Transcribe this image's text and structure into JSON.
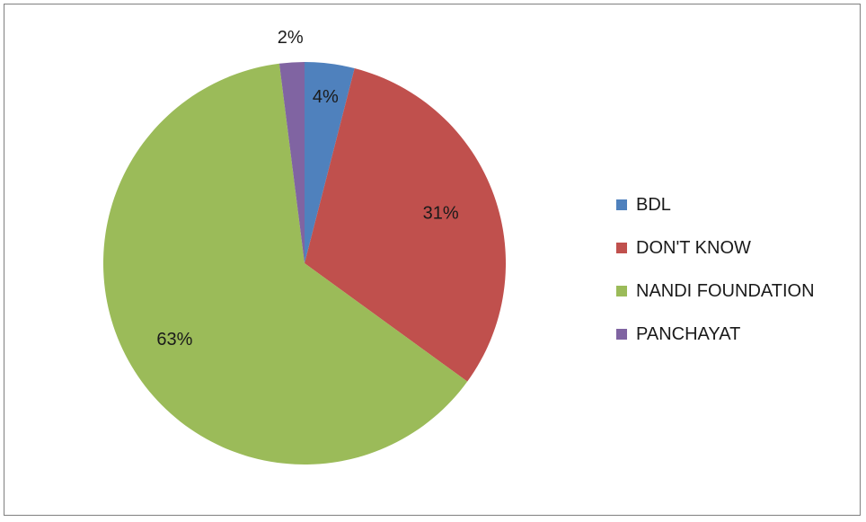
{
  "chart_data": {
    "type": "pie",
    "categories": [
      "BDL",
      "DON'T KNOW",
      "NANDI FOUNDATION",
      "PANCHAYAT"
    ],
    "values": [
      4,
      31,
      63,
      2
    ],
    "data_labels": [
      "4%",
      "31%",
      "63%",
      "2%"
    ],
    "colors": [
      "#4f81bd",
      "#c0504d",
      "#9bbb59",
      "#8064a2"
    ],
    "legend_position": "right",
    "start_angle": "12 o'clock, clockwise"
  }
}
